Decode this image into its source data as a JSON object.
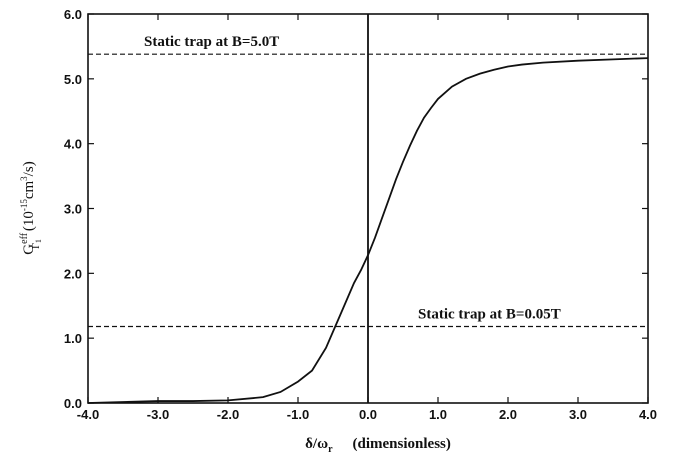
{
  "chart_data": {
    "type": "line",
    "xlim": [
      -4.0,
      4.0
    ],
    "ylim": [
      0.0,
      6.0
    ],
    "x_ticks": [
      -4.0,
      -3.0,
      -2.0,
      -1.0,
      0.0,
      1.0,
      2.0,
      3.0,
      4.0
    ],
    "x_tick_labels": [
      "-4.0",
      "-3.0",
      "-2.0",
      "-1.0",
      "0.0",
      "1.0",
      "2.0",
      "3.0",
      "4.0"
    ],
    "y_ticks": [
      0.0,
      1.0,
      2.0,
      3.0,
      4.0,
      5.0,
      6.0
    ],
    "y_tick_labels": [
      "0.0",
      "1.0",
      "2.0",
      "3.0",
      "4.0",
      "5.0",
      "6.0"
    ],
    "xlabel": {
      "symbol": "δ/ω",
      "symbol_sub": "r",
      "note": "(dimensionless)"
    },
    "ylabel": {
      "G": "G",
      "sup": "eff",
      "sub": "Γ",
      "subsub": "1",
      "units_pre": "(10",
      "units_exp": "-15",
      "units_mid": "cm",
      "units_exp2": "3",
      "units_post": "/s)"
    },
    "grid": false,
    "series": [
      {
        "x": [
          -4.0,
          -3.0,
          -2.5,
          -2.0,
          -1.5,
          -1.25,
          -1.0,
          -0.8,
          -0.6,
          -0.4,
          -0.2,
          -0.1,
          0.0,
          0.1,
          0.2,
          0.3,
          0.4,
          0.5,
          0.6,
          0.7,
          0.8,
          0.9,
          1.0,
          1.2,
          1.4,
          1.6,
          1.8,
          2.0,
          2.2,
          2.5,
          3.0,
          3.5,
          4.0
        ],
        "y": [
          0.0,
          0.03,
          0.03,
          0.04,
          0.09,
          0.17,
          0.33,
          0.5,
          0.85,
          1.35,
          1.85,
          2.05,
          2.28,
          2.55,
          2.85,
          3.15,
          3.45,
          3.72,
          3.97,
          4.2,
          4.4,
          4.55,
          4.69,
          4.88,
          5.0,
          5.08,
          5.14,
          5.19,
          5.22,
          5.25,
          5.28,
          5.3,
          5.32
        ]
      }
    ],
    "reference_lines": [
      {
        "orientation": "horizontal",
        "y": 5.38,
        "style": "dashed",
        "label": "Static trap at B=5.0T"
      },
      {
        "orientation": "horizontal",
        "y": 1.18,
        "style": "dashed",
        "label": "Static trap at B=0.05T"
      },
      {
        "orientation": "vertical",
        "x": 0.0,
        "style": "solid",
        "label": ""
      }
    ]
  }
}
